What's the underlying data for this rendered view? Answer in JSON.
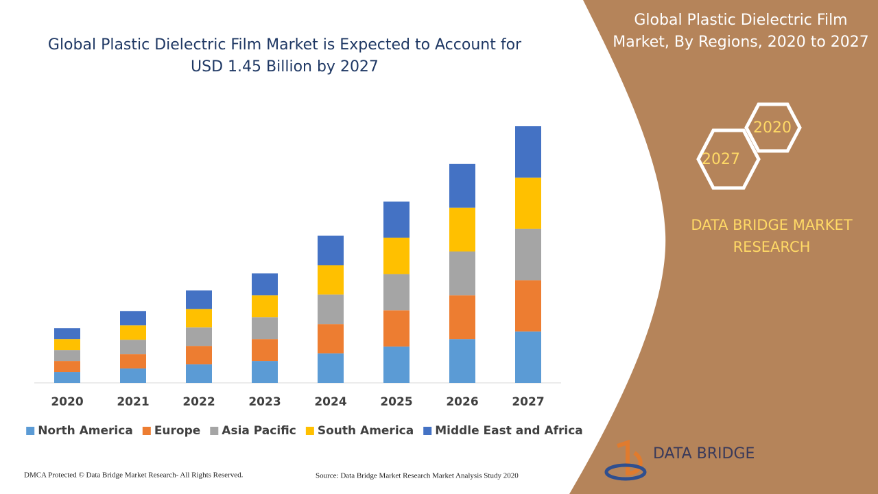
{
  "chart_data": {
    "type": "stacked_bar",
    "title": "Global Plastic Dielectric Film Market is Expected to Account for USD 1.45 Billion by 2027",
    "categories": [
      "2020",
      "2021",
      "2022",
      "2023",
      "2024",
      "2025",
      "2026",
      "2027"
    ],
    "series": [
      {
        "name": "North America",
        "color": "#5b9bd5",
        "values": [
          16,
          21,
          27,
          32,
          43,
          53,
          64,
          75
        ]
      },
      {
        "name": "Europe",
        "color": "#ed7d31",
        "values": [
          16,
          21,
          27,
          32,
          43,
          53,
          64,
          75
        ]
      },
      {
        "name": "Asia Pacific",
        "color": "#a5a5a5",
        "values": [
          16,
          21,
          27,
          32,
          43,
          53,
          64,
          75
        ]
      },
      {
        "name": "South America",
        "color": "#ffc000",
        "values": [
          16,
          21,
          27,
          32,
          43,
          53,
          64,
          75
        ]
      },
      {
        "name": "Middle East and Africa",
        "color": "#4472c4",
        "values": [
          16,
          21,
          27,
          32,
          43,
          53,
          64,
          75
        ]
      }
    ]
  },
  "panel": {
    "title": "Global Plastic Dielectric Film Market, By Regions, 2020 to 2027",
    "hex_top": "2020",
    "hex_bottom": "2027",
    "brand": "DATA BRIDGE MARKET RESEARCH",
    "logo": "DATA BRIDGE"
  },
  "footer": {
    "left": "DMCA Protected © Data Bridge Market Research- All Rights Reserved.",
    "right": "Source: Data Bridge Market Research Market Analysis Study 2020"
  }
}
